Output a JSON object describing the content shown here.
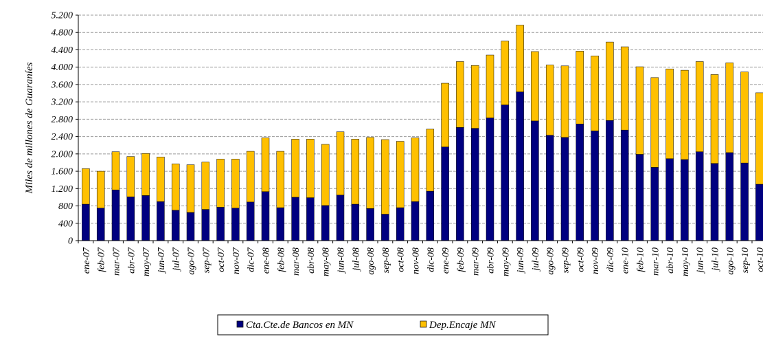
{
  "chart_data": {
    "type": "stacked_bar",
    "y_label": "Miles de millones de Guaraníes",
    "categories": [
      "ene-07",
      "feb-07",
      "mar-07",
      "abr-07",
      "may-07",
      "jun-07",
      "jul-07",
      "ago-07",
      "sep-07",
      "oct-07",
      "nov-07",
      "dic-07",
      "ene-08",
      "feb-08",
      "mar-08",
      "abr-08",
      "may-08",
      "jun-08",
      "jul-08",
      "ago-08",
      "sep-08",
      "oct-08",
      "nov-08",
      "dic-08",
      "ene-09",
      "feb-09",
      "mar-09",
      "abr-09",
      "may-09",
      "jun-09",
      "jul-09",
      "ago-09",
      "sep-09",
      "oct-09",
      "nov-09",
      "dic-09",
      "ene-10",
      "feb-10",
      "mar-10",
      "abr-10",
      "may-10",
      "jun-10",
      "jul-10",
      "ago-10",
      "sep-10",
      "oct-10"
    ],
    "series": [
      {
        "name": "Cta.Cte.de Bancos en MN",
        "color": "#000080",
        "values": [
          840,
          750,
          1170,
          1010,
          1040,
          900,
          700,
          650,
          720,
          770,
          750,
          890,
          1130,
          760,
          1000,
          990,
          810,
          1050,
          840,
          740,
          610,
          760,
          900,
          1140,
          2160,
          2610,
          2590,
          2830,
          3130,
          3430,
          2760,
          2430,
          2380,
          2690,
          2530,
          2770,
          2550,
          1990,
          1690,
          1890,
          1870,
          2050,
          1780,
          2030,
          1790,
          1300
        ]
      },
      {
        "name": "Dep.Encaje MN",
        "color": "#ffc000",
        "values": [
          820,
          850,
          880,
          930,
          970,
          1030,
          1070,
          1100,
          1090,
          1110,
          1130,
          1170,
          1240,
          1300,
          1340,
          1350,
          1410,
          1460,
          1500,
          1640,
          1720,
          1530,
          1470,
          1430,
          1470,
          1520,
          1450,
          1450,
          1470,
          1540,
          1600,
          1620,
          1650,
          1680,
          1730,
          1810,
          1920,
          2020,
          2070,
          2070,
          2060,
          2080,
          2050,
          2070,
          2100,
          2110
        ]
      }
    ],
    "ylim": [
      0,
      5200
    ],
    "yticks": [
      0,
      400,
      800,
      {
        "value": 1200,
        "label": "1.200"
      },
      {
        "value": 1600,
        "label": "1.600"
      },
      {
        "value": 2000,
        "label": "2.000"
      },
      {
        "value": 2400,
        "label": "2.400"
      },
      {
        "value": 2800,
        "label": "2.800"
      },
      {
        "value": 3200,
        "label": "3.200"
      },
      {
        "value": 3600,
        "label": "3.600"
      },
      {
        "value": 4000,
        "label": "4.000"
      },
      {
        "value": 4400,
        "label": "4.400"
      },
      {
        "value": 4800,
        "label": "4.800"
      },
      {
        "value": 5200,
        "label": "5.200"
      }
    ],
    "grid": true,
    "legend": "bottom"
  }
}
